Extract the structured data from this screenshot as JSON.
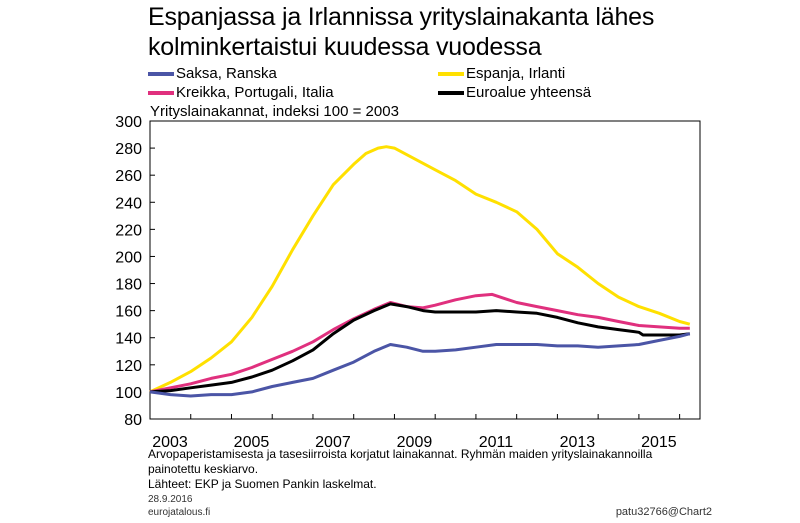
{
  "title_line1": "Espanjassa ja Irlannissa yrityslainakanta lähes",
  "title_line2": "kolminkertaistui kuudessa vuodessa",
  "subtitle": "Yrityslainakannat, indeksi 100 = 2003",
  "legend": [
    {
      "label": "Saksa, Ranska",
      "color": "#4b55a6"
    },
    {
      "label": "Espanja, Irlanti",
      "color": "#ffe000"
    },
    {
      "label": "Kreikka, Portugali, Italia",
      "color": "#e0307e"
    },
    {
      "label": "Euroalue yhteensä",
      "color": "#000000"
    }
  ],
  "footnote_line1": "Arvopaperistamisesta ja tasesiirroista korjatut lainakannat. Ryhmän maiden yrityslainakannoilla",
  "footnote_line2": "painotettu keskiarvo.",
  "sources": "Lähteet: EKP ja Suomen Pankin laskelmat.",
  "date": "28.9.2016",
  "site": "eurojatalous.fi",
  "chart_code": "patu32766@Chart2",
  "chart_data": {
    "type": "line",
    "ylim": [
      80,
      300
    ],
    "xlim": [
      2003,
      2016.5
    ],
    "y_ticks": [
      80,
      100,
      120,
      140,
      160,
      180,
      200,
      220,
      240,
      260,
      280,
      300
    ],
    "x_tick_labels": [
      "2003",
      "2005",
      "2007",
      "2009",
      "2011",
      "2013",
      "2015"
    ],
    "x_tick_positions": [
      2003,
      2005,
      2007,
      2009,
      2011,
      2013,
      2015
    ],
    "series": [
      {
        "name": "Espanja, Irlanti",
        "color": "#ffe000",
        "x": [
          2003,
          2003.5,
          2004,
          2004.5,
          2005,
          2005.5,
          2006,
          2006.5,
          2007,
          2007.5,
          2008,
          2008.3,
          2008.6,
          2008.8,
          2009,
          2009.5,
          2010,
          2010.5,
          2011,
          2011.5,
          2012,
          2012.5,
          2013,
          2013.5,
          2014,
          2014.5,
          2015,
          2015.5,
          2016,
          2016.25
        ],
        "values": [
          100,
          107,
          115,
          125,
          137,
          155,
          178,
          205,
          230,
          253,
          268,
          276,
          280,
          281,
          280,
          272,
          264,
          256,
          246,
          240,
          233,
          220,
          202,
          192,
          180,
          170,
          163,
          158,
          152,
          150
        ]
      },
      {
        "name": "Kreikka, Portugali, Italia",
        "color": "#e0307e",
        "x": [
          2003,
          2003.5,
          2004,
          2004.5,
          2005,
          2005.5,
          2006,
          2006.5,
          2007,
          2007.5,
          2008,
          2008.5,
          2008.9,
          2009.3,
          2009.7,
          2010,
          2010.5,
          2011,
          2011.4,
          2011.8,
          2012,
          2012.5,
          2013,
          2013.5,
          2014,
          2014.5,
          2015,
          2015.5,
          2016,
          2016.25
        ],
        "values": [
          100,
          103,
          106,
          110,
          113,
          118,
          124,
          130,
          137,
          146,
          154,
          161,
          166,
          163,
          162,
          164,
          168,
          171,
          172,
          168,
          166,
          163,
          160,
          157,
          155,
          152,
          149,
          148,
          147,
          147
        ]
      },
      {
        "name": "Euroalue yhteensä",
        "color": "#000000",
        "x": [
          2003,
          2003.5,
          2004,
          2004.5,
          2005,
          2005.5,
          2006,
          2006.5,
          2007,
          2007.5,
          2008,
          2008.5,
          2008.9,
          2009.3,
          2009.7,
          2010,
          2010.5,
          2011,
          2011.5,
          2012,
          2012.5,
          2013,
          2013.5,
          2014,
          2014.5,
          2015,
          2015.1,
          2015.5,
          2016,
          2016.25
        ],
        "values": [
          100,
          101,
          103,
          105,
          107,
          111,
          116,
          123,
          131,
          143,
          153,
          160,
          165,
          163,
          160,
          159,
          159,
          159,
          160,
          159,
          158,
          155,
          151,
          148,
          146,
          144,
          142,
          142,
          142,
          143
        ]
      },
      {
        "name": "Saksa, Ranska",
        "color": "#4b55a6",
        "x": [
          2003,
          2003.5,
          2004,
          2004.5,
          2005,
          2005.5,
          2006,
          2006.5,
          2007,
          2007.5,
          2008,
          2008.5,
          2008.9,
          2009.3,
          2009.7,
          2010,
          2010.5,
          2011,
          2011.5,
          2012,
          2012.5,
          2013,
          2013.5,
          2014,
          2014.5,
          2015,
          2015.5,
          2016,
          2016.25
        ],
        "values": [
          100,
          98,
          97,
          98,
          98,
          100,
          104,
          107,
          110,
          116,
          122,
          130,
          135,
          133,
          130,
          130,
          131,
          133,
          135,
          135,
          135,
          134,
          134,
          133,
          134,
          135,
          138,
          141,
          143
        ]
      }
    ]
  }
}
